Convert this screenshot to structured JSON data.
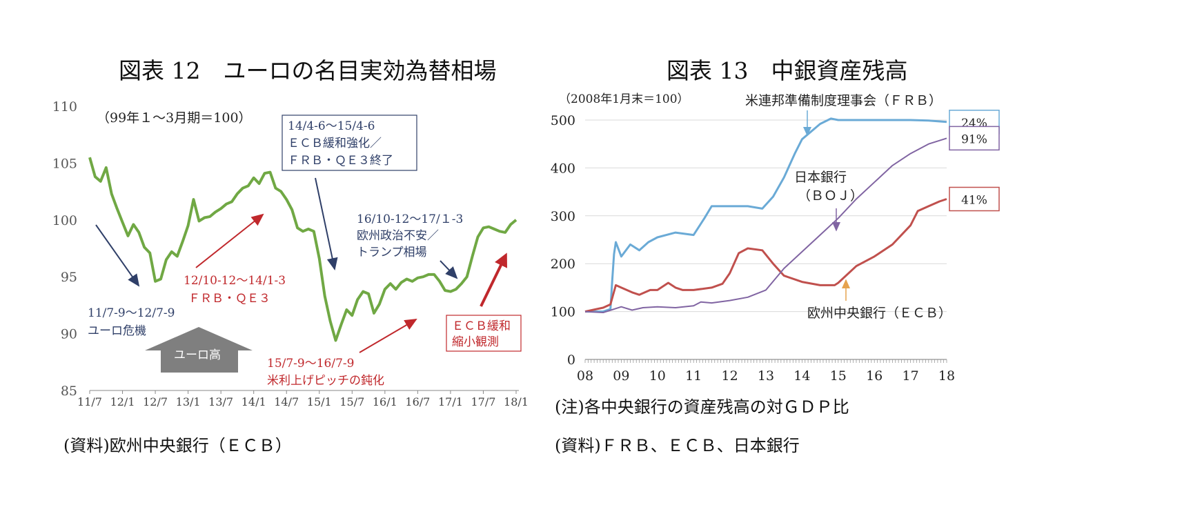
{
  "left": {
    "title": "図表 12　ユーロの名目実効為替相場",
    "source": "(資料)欧州中央銀行（ＥＣＢ）",
    "base_label": "（99年１～3月期＝100）",
    "chart_data": {
      "type": "line",
      "ylim": [
        85,
        110
      ],
      "yticks": [
        85,
        90,
        95,
        100,
        105,
        110
      ],
      "xlim": [
        "2011-07",
        "2018-01"
      ],
      "xticks": [
        "11/7",
        "12/1",
        "12/7",
        "13/1",
        "13/7",
        "14/1",
        "14/7",
        "15/1",
        "15/7",
        "16/1",
        "16/7",
        "17/1",
        "17/7",
        "18/1"
      ],
      "series": [
        {
          "color": "#70a844",
          "x": [
            "2011-07",
            "2011-08",
            "2011-09",
            "2011-10",
            "2011-11",
            "2011-12",
            "2012-01",
            "2012-02",
            "2012-03",
            "2012-04",
            "2012-05",
            "2012-06",
            "2012-07",
            "2012-08",
            "2012-09",
            "2012-10",
            "2012-11",
            "2012-12",
            "2013-01",
            "2013-02",
            "2013-03",
            "2013-04",
            "2013-05",
            "2013-06",
            "2013-07",
            "2013-08",
            "2013-09",
            "2013-10",
            "2013-11",
            "2013-12",
            "2014-01",
            "2014-02",
            "2014-03",
            "2014-04",
            "2014-05",
            "2014-06",
            "2014-07",
            "2014-08",
            "2014-09",
            "2014-10",
            "2014-11",
            "2014-12",
            "2015-01",
            "2015-02",
            "2015-03",
            "2015-04",
            "2015-05",
            "2015-06",
            "2015-07",
            "2015-08",
            "2015-09",
            "2015-10",
            "2015-11",
            "2015-12",
            "2016-01",
            "2016-02",
            "2016-03",
            "2016-04",
            "2016-05",
            "2016-06",
            "2016-07",
            "2016-08",
            "2016-09",
            "2016-10",
            "2016-11",
            "2016-12",
            "2017-01",
            "2017-02",
            "2017-03",
            "2017-04",
            "2017-05",
            "2017-06",
            "2017-07",
            "2017-08",
            "2017-09",
            "2017-10",
            "2017-11",
            "2017-12",
            "2018-01"
          ],
          "values": [
            105.5,
            103.8,
            103.4,
            104.6,
            102.3,
            101.0,
            99.8,
            98.6,
            99.6,
            98.9,
            97.6,
            97.1,
            94.6,
            94.8,
            96.5,
            97.2,
            96.8,
            98.1,
            99.5,
            101.8,
            99.9,
            100.2,
            100.3,
            100.7,
            101.0,
            101.4,
            101.6,
            102.3,
            102.8,
            103.0,
            103.7,
            103.2,
            104.1,
            104.2,
            102.8,
            102.5,
            101.8,
            100.9,
            99.3,
            99.0,
            99.2,
            99.0,
            96.6,
            93.3,
            91.1,
            89.4,
            90.8,
            92.1,
            91.6,
            93.0,
            93.7,
            93.5,
            91.8,
            92.6,
            93.9,
            94.4,
            93.9,
            94.5,
            94.8,
            94.6,
            94.9,
            95.0,
            95.2,
            95.2,
            94.6,
            93.8,
            93.7,
            93.9,
            94.4,
            95.0,
            96.8,
            98.5,
            99.3,
            99.4,
            99.2,
            99.0,
            98.9,
            99.6,
            100.0
          ]
        }
      ]
    },
    "annotations": {
      "a1_line1": "11/7-9～12/7-9",
      "a1_line2": "ユーロ危機",
      "a2_line1": "12/10-12～14/1-3",
      "a2_line2": "ＦＲＢ・ＱＥ３",
      "a3_line1": "14/4-6～15/4-6",
      "a3_line2": "ＥＣＢ緩和強化／",
      "a3_line3": "ＦＲＢ・ＱＥ３終了",
      "a4_line1": "15/7-9～16/7-9",
      "a4_line2": "米利上げピッチの鈍化",
      "a5_line1": "16/10-12～17/１-3",
      "a5_line2": "欧州政治不安／",
      "a5_line3": "トランプ相場",
      "a6_line1": "ＥＣＢ緩和",
      "a6_line2": "縮小観測",
      "arrow_label": "ユーロ高"
    },
    "colors": {
      "navy": "#2f3f68",
      "red": "#c0282c",
      "gray_arrow": "#7f7f7f"
    }
  },
  "right": {
    "title": "図表 13　中銀資産残高",
    "note": "(注)各中央銀行の資産残高の対ＧＤＰ比",
    "source": "(資料)ＦＲＢ、ＥＣＢ、日本銀行",
    "base_label": "（2008年1月末＝100）",
    "chart_data": {
      "type": "line",
      "ylim": [
        0,
        500
      ],
      "yticks": [
        0,
        100,
        200,
        300,
        400,
        500
      ],
      "xlim": [
        2008.0,
        2018.0
      ],
      "xticks": [
        "08",
        "09",
        "10",
        "11",
        "12",
        "13",
        "14",
        "15",
        "16",
        "17",
        "18"
      ],
      "series": [
        {
          "name": "米連邦準備制度理事会（ＦＲＢ）",
          "color": "#6aaad6",
          "end_label": "24%",
          "x": [
            2008.0,
            2008.5,
            2008.7,
            2008.75,
            2008.8,
            2008.85,
            2009.0,
            2009.25,
            2009.5,
            2009.75,
            2010.0,
            2010.5,
            2011.0,
            2011.3,
            2011.5,
            2012.0,
            2012.5,
            2012.9,
            2013.2,
            2013.5,
            2013.8,
            2014.0,
            2014.5,
            2014.8,
            2015.0,
            2015.5,
            2016.0,
            2016.5,
            2017.0,
            2017.5,
            2018.0
          ],
          "values": [
            100,
            100,
            105,
            165,
            220,
            245,
            215,
            240,
            228,
            245,
            255,
            265,
            260,
            295,
            320,
            320,
            320,
            315,
            340,
            380,
            430,
            460,
            492,
            503,
            500,
            500,
            500,
            500,
            500,
            499,
            496
          ]
        },
        {
          "name": "欧州中央銀行（ＥＣＢ）",
          "color": "#c0504d",
          "end_label": "41%",
          "x": [
            2008.0,
            2008.5,
            2008.7,
            2008.85,
            2009.0,
            2009.3,
            2009.5,
            2009.8,
            2010.0,
            2010.3,
            2010.5,
            2010.7,
            2011.0,
            2011.5,
            2011.8,
            2012.0,
            2012.25,
            2012.5,
            2012.9,
            2013.2,
            2013.5,
            2014.0,
            2014.5,
            2014.9,
            2015.0,
            2015.5,
            2016.0,
            2016.5,
            2017.0,
            2017.2,
            2017.5,
            2017.8,
            2018.0
          ],
          "values": [
            100,
            108,
            115,
            155,
            150,
            140,
            135,
            145,
            145,
            160,
            150,
            145,
            145,
            150,
            158,
            180,
            222,
            232,
            228,
            200,
            175,
            162,
            155,
            155,
            160,
            195,
            215,
            240,
            280,
            310,
            320,
            330,
            335
          ]
        },
        {
          "name": "日本銀行（ＢＯＪ）",
          "color": "#8064a2",
          "end_label": "91%",
          "x": [
            2008.0,
            2008.5,
            2008.8,
            2009.0,
            2009.3,
            2009.6,
            2010.0,
            2010.5,
            2011.0,
            2011.2,
            2011.5,
            2012.0,
            2012.5,
            2013.0,
            2013.5,
            2014.0,
            2014.5,
            2015.0,
            2015.5,
            2016.0,
            2016.5,
            2017.0,
            2017.5,
            2018.0
          ],
          "values": [
            100,
            98,
            105,
            110,
            103,
            108,
            110,
            108,
            112,
            120,
            118,
            123,
            130,
            145,
            190,
            225,
            260,
            295,
            335,
            370,
            405,
            430,
            450,
            462
          ]
        }
      ],
      "series_labels": {
        "frb": "米連邦準備制度理事会（ＦＲＢ）",
        "boj_line1": "日本銀行",
        "boj_line2": "（ＢＯＪ）",
        "ecb": "欧州中央銀行（ＥＣＢ）"
      }
    }
  }
}
